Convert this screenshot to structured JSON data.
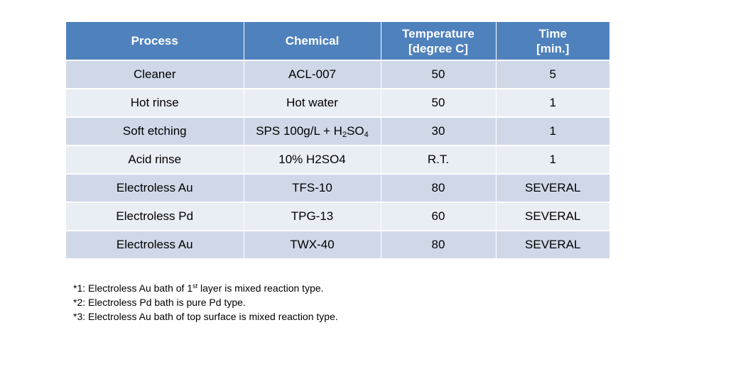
{
  "table": {
    "headers": {
      "process": "Process",
      "chemical": "Chemical",
      "temperature": [
        "Temperature",
        "[degree C]"
      ],
      "time": [
        "Time",
        "[min.]"
      ]
    },
    "rows": [
      {
        "process": "Cleaner",
        "chemical": "ACL-007",
        "temperature": "50",
        "time": "5"
      },
      {
        "process": "Hot rinse",
        "chemical": "Hot water",
        "temperature": "50",
        "time": "1"
      },
      {
        "process": "Soft etching",
        "chemical": {
          "prefix": "SPS 100g/L + H",
          "sub1": "2",
          "mid": "SO",
          "sub2": "4"
        },
        "temperature": "30",
        "time": "1"
      },
      {
        "process": "Acid rinse",
        "chemical": "10% H2SO4",
        "temperature": "R.T.",
        "time": "1"
      },
      {
        "process": "Electroless Au",
        "chemical": "TFS-10",
        "temperature": "80",
        "time": "SEVERAL"
      },
      {
        "process": "Electroless Pd",
        "chemical": "TPG-13",
        "temperature": "60",
        "time": "SEVERAL"
      },
      {
        "process": "Electroless Au",
        "chemical": "TWX-40",
        "temperature": "80",
        "time": "SEVERAL"
      }
    ]
  },
  "footnotes": [
    {
      "before": "*1: Electroless Au bath of 1",
      "sup": "st",
      "after": " layer is mixed reaction type."
    },
    {
      "before": "*2: Electroless Pd bath is pure Pd type.",
      "sup": "",
      "after": ""
    },
    {
      "before": "*3: Electroless Au bath of top surface is mixed reaction type.",
      "sup": "",
      "after": ""
    }
  ],
  "colors": {
    "header_bg": "#4f81bd",
    "row_odd_bg": "#d0d8e8",
    "row_even_bg": "#e9edf4"
  }
}
